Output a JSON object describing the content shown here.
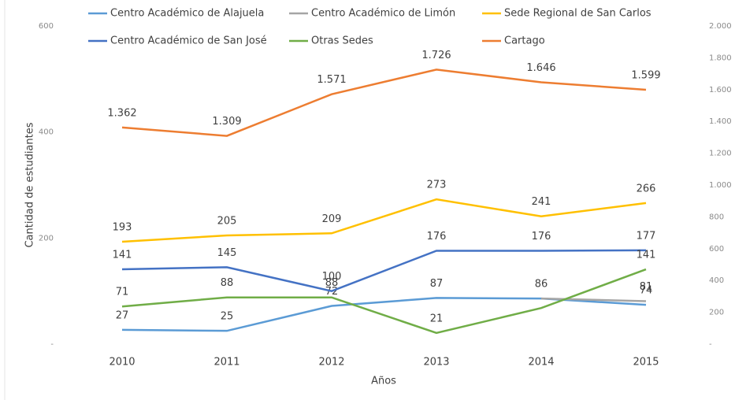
{
  "chart_data": {
    "type": "line",
    "categories": [
      "2010",
      "2011",
      "2012",
      "2013",
      "2014",
      "2015"
    ],
    "xlabel": "Años",
    "ylabel": "Cantidad de estudiantes",
    "ylim": [
      0,
      600
    ],
    "yticks": [
      {
        "value": 0,
        "label": "-"
      },
      200,
      400,
      600
    ],
    "y2lim": [
      0,
      2000
    ],
    "y2ticks": [
      {
        "value": 0,
        "label": "-"
      },
      200,
      400,
      600,
      800,
      {
        "value": 1000,
        "label": "1.000"
      },
      {
        "value": 1200,
        "label": "1.200"
      },
      {
        "value": 1400,
        "label": "1.400"
      },
      {
        "value": 1600,
        "label": "1.600"
      },
      {
        "value": 1800,
        "label": "1.800"
      },
      {
        "value": 2000,
        "label": "2.000"
      }
    ],
    "series": [
      {
        "name": "Centro Académico de Alajuela",
        "color": "#5b9bd5",
        "values": [
          27,
          25,
          72,
          87,
          86,
          74
        ]
      },
      {
        "name": "Centro Académico de Limón",
        "color": "#a5a5a5",
        "values": [
          null,
          null,
          null,
          null,
          86,
          81
        ],
        "value_labels": [
          null,
          null,
          null,
          null,
          null,
          "81"
        ]
      },
      {
        "name": "Sede Regional de San Carlos",
        "color": "#ffc000",
        "values": [
          193,
          205,
          209,
          273,
          241,
          266
        ]
      },
      {
        "name": "Centro Académico de San José",
        "color": "#4472c4",
        "values": [
          141,
          145,
          100,
          176,
          176,
          177
        ]
      },
      {
        "name": "Otras Sedes",
        "color": "#70ad47",
        "values": [
          71,
          88,
          88,
          21,
          68,
          141
        ],
        "value_labels": [
          "71",
          "88",
          "88",
          "21",
          null,
          "141"
        ]
      },
      {
        "name": "Cartago",
        "color": "#ed7d31",
        "axis": "y2",
        "values": [
          1362,
          1309,
          1571,
          1726,
          1646,
          1599
        ],
        "value_labels": [
          "1.362",
          "1.309",
          "1.571",
          "1.726",
          "1.646",
          "1.599"
        ]
      }
    ]
  }
}
